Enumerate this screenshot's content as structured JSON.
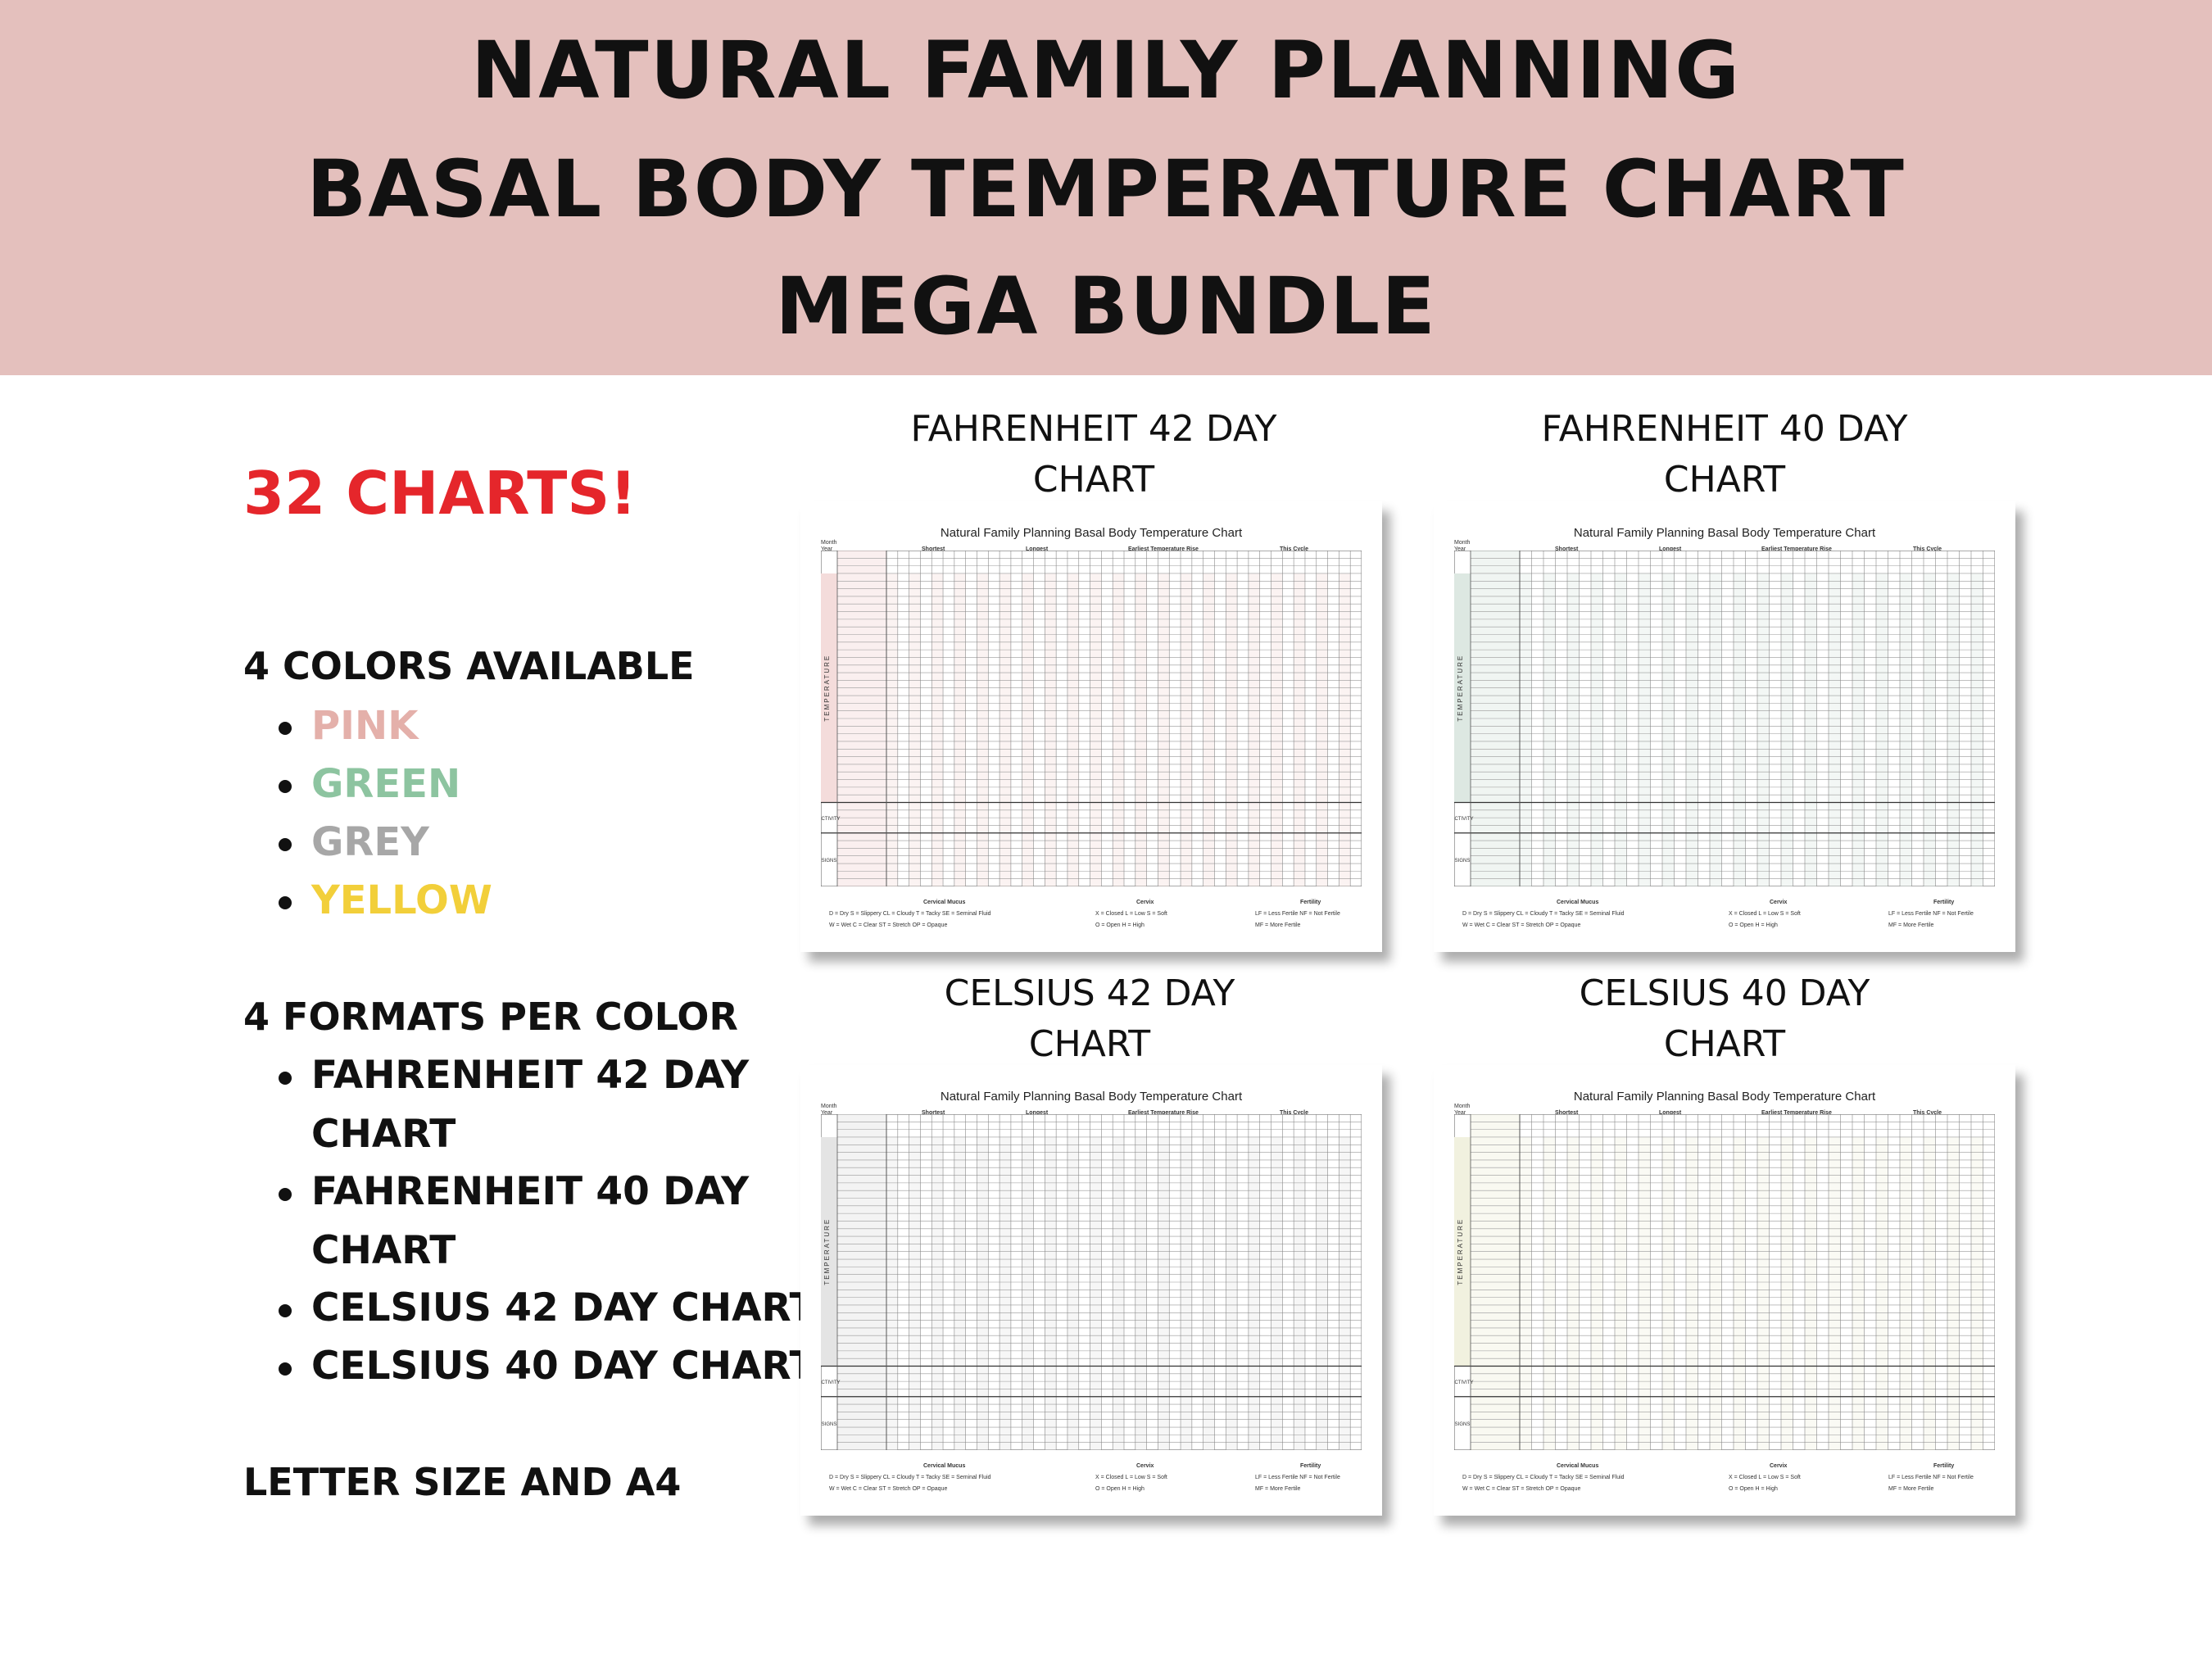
{
  "header": {
    "line1": "NATURAL FAMILY PLANNING",
    "line2": "BASAL BODY TEMPERATURE CHART",
    "line3": "MEGA BUNDLE"
  },
  "info": {
    "chart_count": "32 CHARTS!",
    "colors_heading": "4 COLORS AVAILABLE",
    "colors": [
      {
        "label": "PINK",
        "color": "#e4b0aa"
      },
      {
        "label": "GREEN",
        "color": "#8dc4a0"
      },
      {
        "label": "GREY",
        "color": "#a7a7a7"
      },
      {
        "label": "YELLOW",
        "color": "#f2cf3a"
      }
    ],
    "formats_heading": "4 FORMATS PER COLOR",
    "formats": [
      {
        "line1": "FAHRENHEIT 42 DAY",
        "line2": "CHART"
      },
      {
        "line1": "FAHRENHEIT 40 DAY",
        "line2": "CHART"
      },
      {
        "line1": "CELSIUS 42 DAY CHART",
        "line2": ""
      },
      {
        "line1": "CELSIUS 40 DAY CHART",
        "line2": ""
      }
    ],
    "size_note": "LETTER SIZE AND A4"
  },
  "previews": [
    {
      "title1": "FAHRENHEIT 42 DAY",
      "title2": "CHART",
      "days": 42,
      "accent": "#f4dcdb"
    },
    {
      "title1": "FAHRENHEIT 40 DAY",
      "title2": "CHART",
      "days": 40,
      "accent": "#dde8e2"
    },
    {
      "title1": "CELSIUS 42 DAY",
      "title2": "CHART",
      "days": 42,
      "accent": "#e4e4e4"
    },
    {
      "title1": "CELSIUS 40 DAY",
      "title2": "CHART",
      "days": 40,
      "accent": "#f1f1df"
    }
  ],
  "chart_sheet": {
    "title": "Natural Family Planning Basal Body Temperature Chart",
    "month_label": "Month",
    "year_label": "Year",
    "shortest_label": "Shortest",
    "longest_label": "Longest",
    "earliest_label": "Earliest Temperature Rise",
    "this_cycle_label": "This Cycle",
    "temperature_label": "TEMPERATURE",
    "activity_label": "ACTIVITY",
    "signs_label": "SIGNS",
    "cervical_mucus_label": "Cervical Mucus",
    "cervix_label": "Cervix",
    "fertility_label": "Fertility",
    "legend_mucus_row1": "D = Dry     S = Slippery     CL = Cloudy     T = Tacky     SE = Seminal Fluid",
    "legend_mucus_row2": "W = Wet     C = Clear     ST = Stretch     OP = Opaque",
    "legend_cervix_row1": "X = Closed     L = Low     S = Soft",
    "legend_cervix_row2": "O = Open     H = High",
    "legend_fertility_row1": "LF = Less Fertile     NF = Not Fertile",
    "legend_fertility_row2": "MF = More Fertile"
  }
}
